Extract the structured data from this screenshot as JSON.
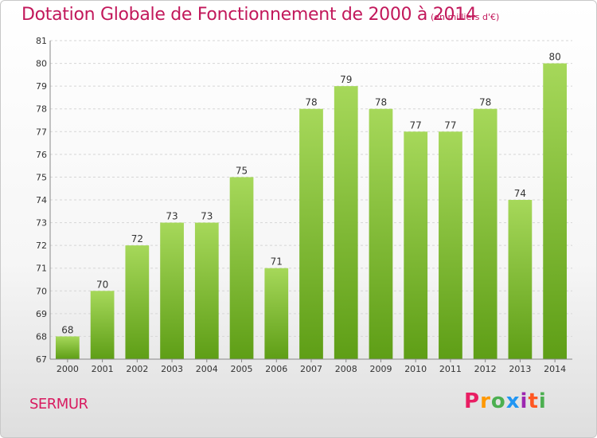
{
  "header": {
    "title": "Dotation Globale de Fonctionnement de 2000 à 2014",
    "unit": "(en milliers d'€)"
  },
  "footer": {
    "commune": "SERMUR",
    "logo": "Proxiti"
  },
  "chart_data": {
    "type": "bar",
    "title": "Dotation Globale de Fonctionnement de 2000 à 2014",
    "subtitle": "(en milliers d'€)",
    "xlabel": "",
    "ylabel": "",
    "categories": [
      "2000",
      "2001",
      "2002",
      "2003",
      "2004",
      "2005",
      "2006",
      "2007",
      "2008",
      "2009",
      "2010",
      "2011",
      "2012",
      "2013",
      "2014"
    ],
    "values": [
      68,
      70,
      72,
      73,
      73,
      75,
      71,
      78,
      79,
      78,
      77,
      77,
      78,
      74,
      80
    ],
    "ylim": [
      67,
      81
    ],
    "yticks": [
      67,
      68,
      69,
      70,
      71,
      72,
      73,
      74,
      75,
      76,
      77,
      78,
      79,
      80,
      81
    ],
    "grid": true,
    "bar_color": "#7dc02e",
    "legend": "none"
  }
}
